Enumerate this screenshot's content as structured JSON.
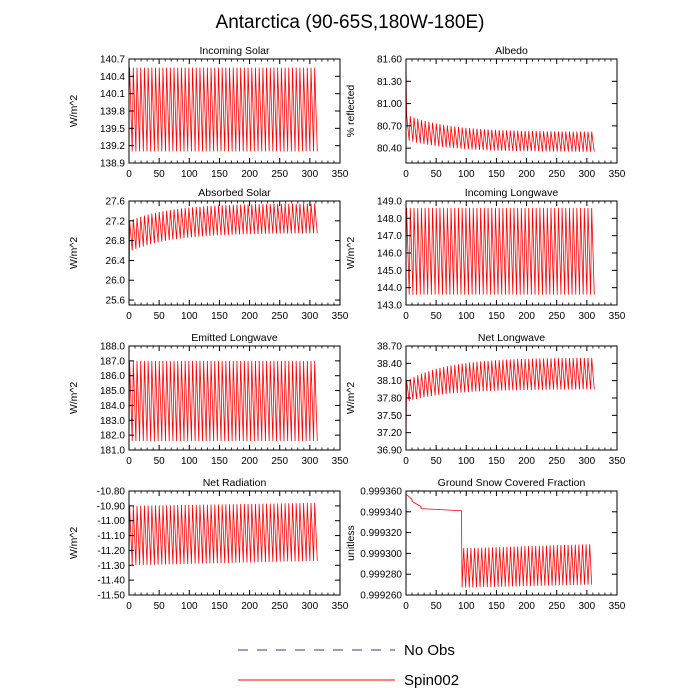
{
  "figure": {
    "title": "Antarctica (90-65S,180W-180E)",
    "legend": [
      {
        "label": "No Obs",
        "color": "#3a3a8a",
        "style": "dashed"
      },
      {
        "label": "Spin002",
        "color": "#ff0000",
        "style": "solid"
      }
    ]
  },
  "chart_data": [
    {
      "type": "line",
      "title": "Incoming Solar",
      "ylabel": "W/m^2",
      "xlim": [
        0,
        350
      ],
      "xticks": [
        0,
        50,
        100,
        150,
        200,
        250,
        300,
        350
      ],
      "ylim": [
        138.9,
        140.7
      ],
      "yticks": [
        "138.9",
        "139.2",
        "139.5",
        "139.8",
        "140.1",
        "140.4",
        "140.7"
      ],
      "series": [
        {
          "name": "Spin002",
          "color": "#ff0000",
          "x_range": [
            0,
            308
          ],
          "cycles": 50,
          "start": 140.0,
          "trend": "flat",
          "envelope_start": [
            139.1,
            140.55
          ],
          "envelope_end": [
            139.1,
            140.55
          ]
        }
      ]
    },
    {
      "type": "line",
      "title": "Albedo",
      "ylabel": "% reflected",
      "xlim": [
        0,
        350
      ],
      "xticks": [
        0,
        50,
        100,
        150,
        200,
        250,
        300,
        350
      ],
      "ylim": [
        80.2,
        81.6
      ],
      "yticks": [
        "80.40",
        "80.70",
        "81.00",
        "81.30",
        "81.60"
      ],
      "series": [
        {
          "name": "Spin002",
          "color": "#ff0000",
          "x_range": [
            0,
            308
          ],
          "cycles": 50,
          "start": 81.6,
          "trend": "decay",
          "envelope_start": [
            80.5,
            80.85
          ],
          "envelope_end": [
            80.35,
            80.62
          ]
        }
      ]
    },
    {
      "type": "line",
      "title": "Absorbed Solar",
      "ylabel": "W/m^2",
      "xlim": [
        0,
        350
      ],
      "xticks": [
        0,
        50,
        100,
        150,
        200,
        250,
        300,
        350
      ],
      "ylim": [
        25.5,
        27.6
      ],
      "yticks": [
        "25.6",
        "26.0",
        "26.4",
        "26.8",
        "27.2",
        "27.6"
      ],
      "series": [
        {
          "name": "Spin002",
          "color": "#ff0000",
          "x_range": [
            0,
            308
          ],
          "cycles": 50,
          "start": 25.5,
          "trend": "rise",
          "envelope_start": [
            26.6,
            27.2
          ],
          "envelope_end": [
            26.95,
            27.55
          ]
        }
      ]
    },
    {
      "type": "line",
      "title": "Incoming Longwave",
      "ylabel": "W/m^2",
      "xlim": [
        0,
        350
      ],
      "xticks": [
        0,
        50,
        100,
        150,
        200,
        250,
        300,
        350
      ],
      "ylim": [
        143.0,
        149.0
      ],
      "yticks": [
        "143.0",
        "144.0",
        "145.0",
        "146.0",
        "147.0",
        "148.0",
        "149.0"
      ],
      "series": [
        {
          "name": "Spin002",
          "color": "#ff0000",
          "x_range": [
            0,
            308
          ],
          "cycles": 50,
          "start": 145.5,
          "trend": "flat",
          "envelope_start": [
            143.6,
            148.6
          ],
          "envelope_end": [
            143.6,
            148.6
          ]
        }
      ]
    },
    {
      "type": "line",
      "title": "Emitted Longwave",
      "ylabel": "W/m^2",
      "xlim": [
        0,
        350
      ],
      "xticks": [
        0,
        50,
        100,
        150,
        200,
        250,
        300,
        350
      ],
      "ylim": [
        181.0,
        188.0
      ],
      "yticks": [
        "181.0",
        "182.0",
        "183.0",
        "184.0",
        "185.0",
        "186.0",
        "187.0",
        "188.0"
      ],
      "series": [
        {
          "name": "Spin002",
          "color": "#ff0000",
          "x_range": [
            0,
            308
          ],
          "cycles": 50,
          "start": 181.5,
          "trend": "flat",
          "envelope_start": [
            181.6,
            187.0
          ],
          "envelope_end": [
            181.6,
            187.0
          ]
        }
      ]
    },
    {
      "type": "line",
      "title": "Net Longwave",
      "ylabel": "W/m^2",
      "xlim": [
        0,
        350
      ],
      "xticks": [
        0,
        50,
        100,
        150,
        200,
        250,
        300,
        350
      ],
      "ylim": [
        36.9,
        38.7
      ],
      "yticks": [
        "36.90",
        "37.20",
        "37.50",
        "37.80",
        "38.10",
        "38.40",
        "38.70"
      ],
      "series": [
        {
          "name": "Spin002",
          "color": "#ff0000",
          "x_range": [
            0,
            308
          ],
          "cycles": 50,
          "start": 37.0,
          "trend": "rise",
          "envelope_start": [
            37.75,
            38.1
          ],
          "envelope_end": [
            37.95,
            38.5
          ]
        }
      ]
    },
    {
      "type": "line",
      "title": "Net Radiation",
      "ylabel": "W/m^2",
      "xlim": [
        0,
        350
      ],
      "xticks": [
        0,
        50,
        100,
        150,
        200,
        250,
        300,
        350
      ],
      "ylim": [
        -11.5,
        -10.8
      ],
      "yticks": [
        "-11.50",
        "-11.40",
        "-11.30",
        "-11.20",
        "-11.10",
        "-11.00",
        "-10.90",
        "-10.80"
      ],
      "series": [
        {
          "name": "Spin002",
          "color": "#ff0000",
          "x_range": [
            0,
            308
          ],
          "cycles": 50,
          "start": -11.3,
          "trend": "flat",
          "envelope_start": [
            -11.3,
            -10.9
          ],
          "envelope_end": [
            -11.27,
            -10.88
          ]
        }
      ]
    },
    {
      "type": "line",
      "title": "Ground Snow Covered Fraction",
      "ylabel": "unitless",
      "xlim": [
        0,
        350
      ],
      "xticks": [
        0,
        50,
        100,
        150,
        200,
        250,
        300,
        350
      ],
      "ylim": [
        0.99926,
        0.99936
      ],
      "yticks": [
        "0.999260",
        "0.999280",
        "0.999300",
        "0.999320",
        "0.999340",
        "0.999360"
      ],
      "series": [
        {
          "name": "Spin002",
          "color": "#ff0000",
          "x_range": [
            0,
            308
          ],
          "trend": "step",
          "segments": [
            {
              "x": [
                0,
                10
              ],
              "values": [
                0.999357,
                0.999352
              ]
            },
            {
              "x": [
                10,
                25
              ],
              "values": [
                0.99935,
                0.999345
              ]
            },
            {
              "x": [
                25,
                92
              ],
              "values": [
                0.999343,
                0.999341
              ]
            },
            {
              "x": [
                93,
                308
              ],
              "cycles": 36,
              "envelope_start": [
                0.999267,
                0.999305
              ],
              "envelope_end": [
                0.99927,
                0.999309
              ]
            }
          ]
        }
      ]
    }
  ]
}
